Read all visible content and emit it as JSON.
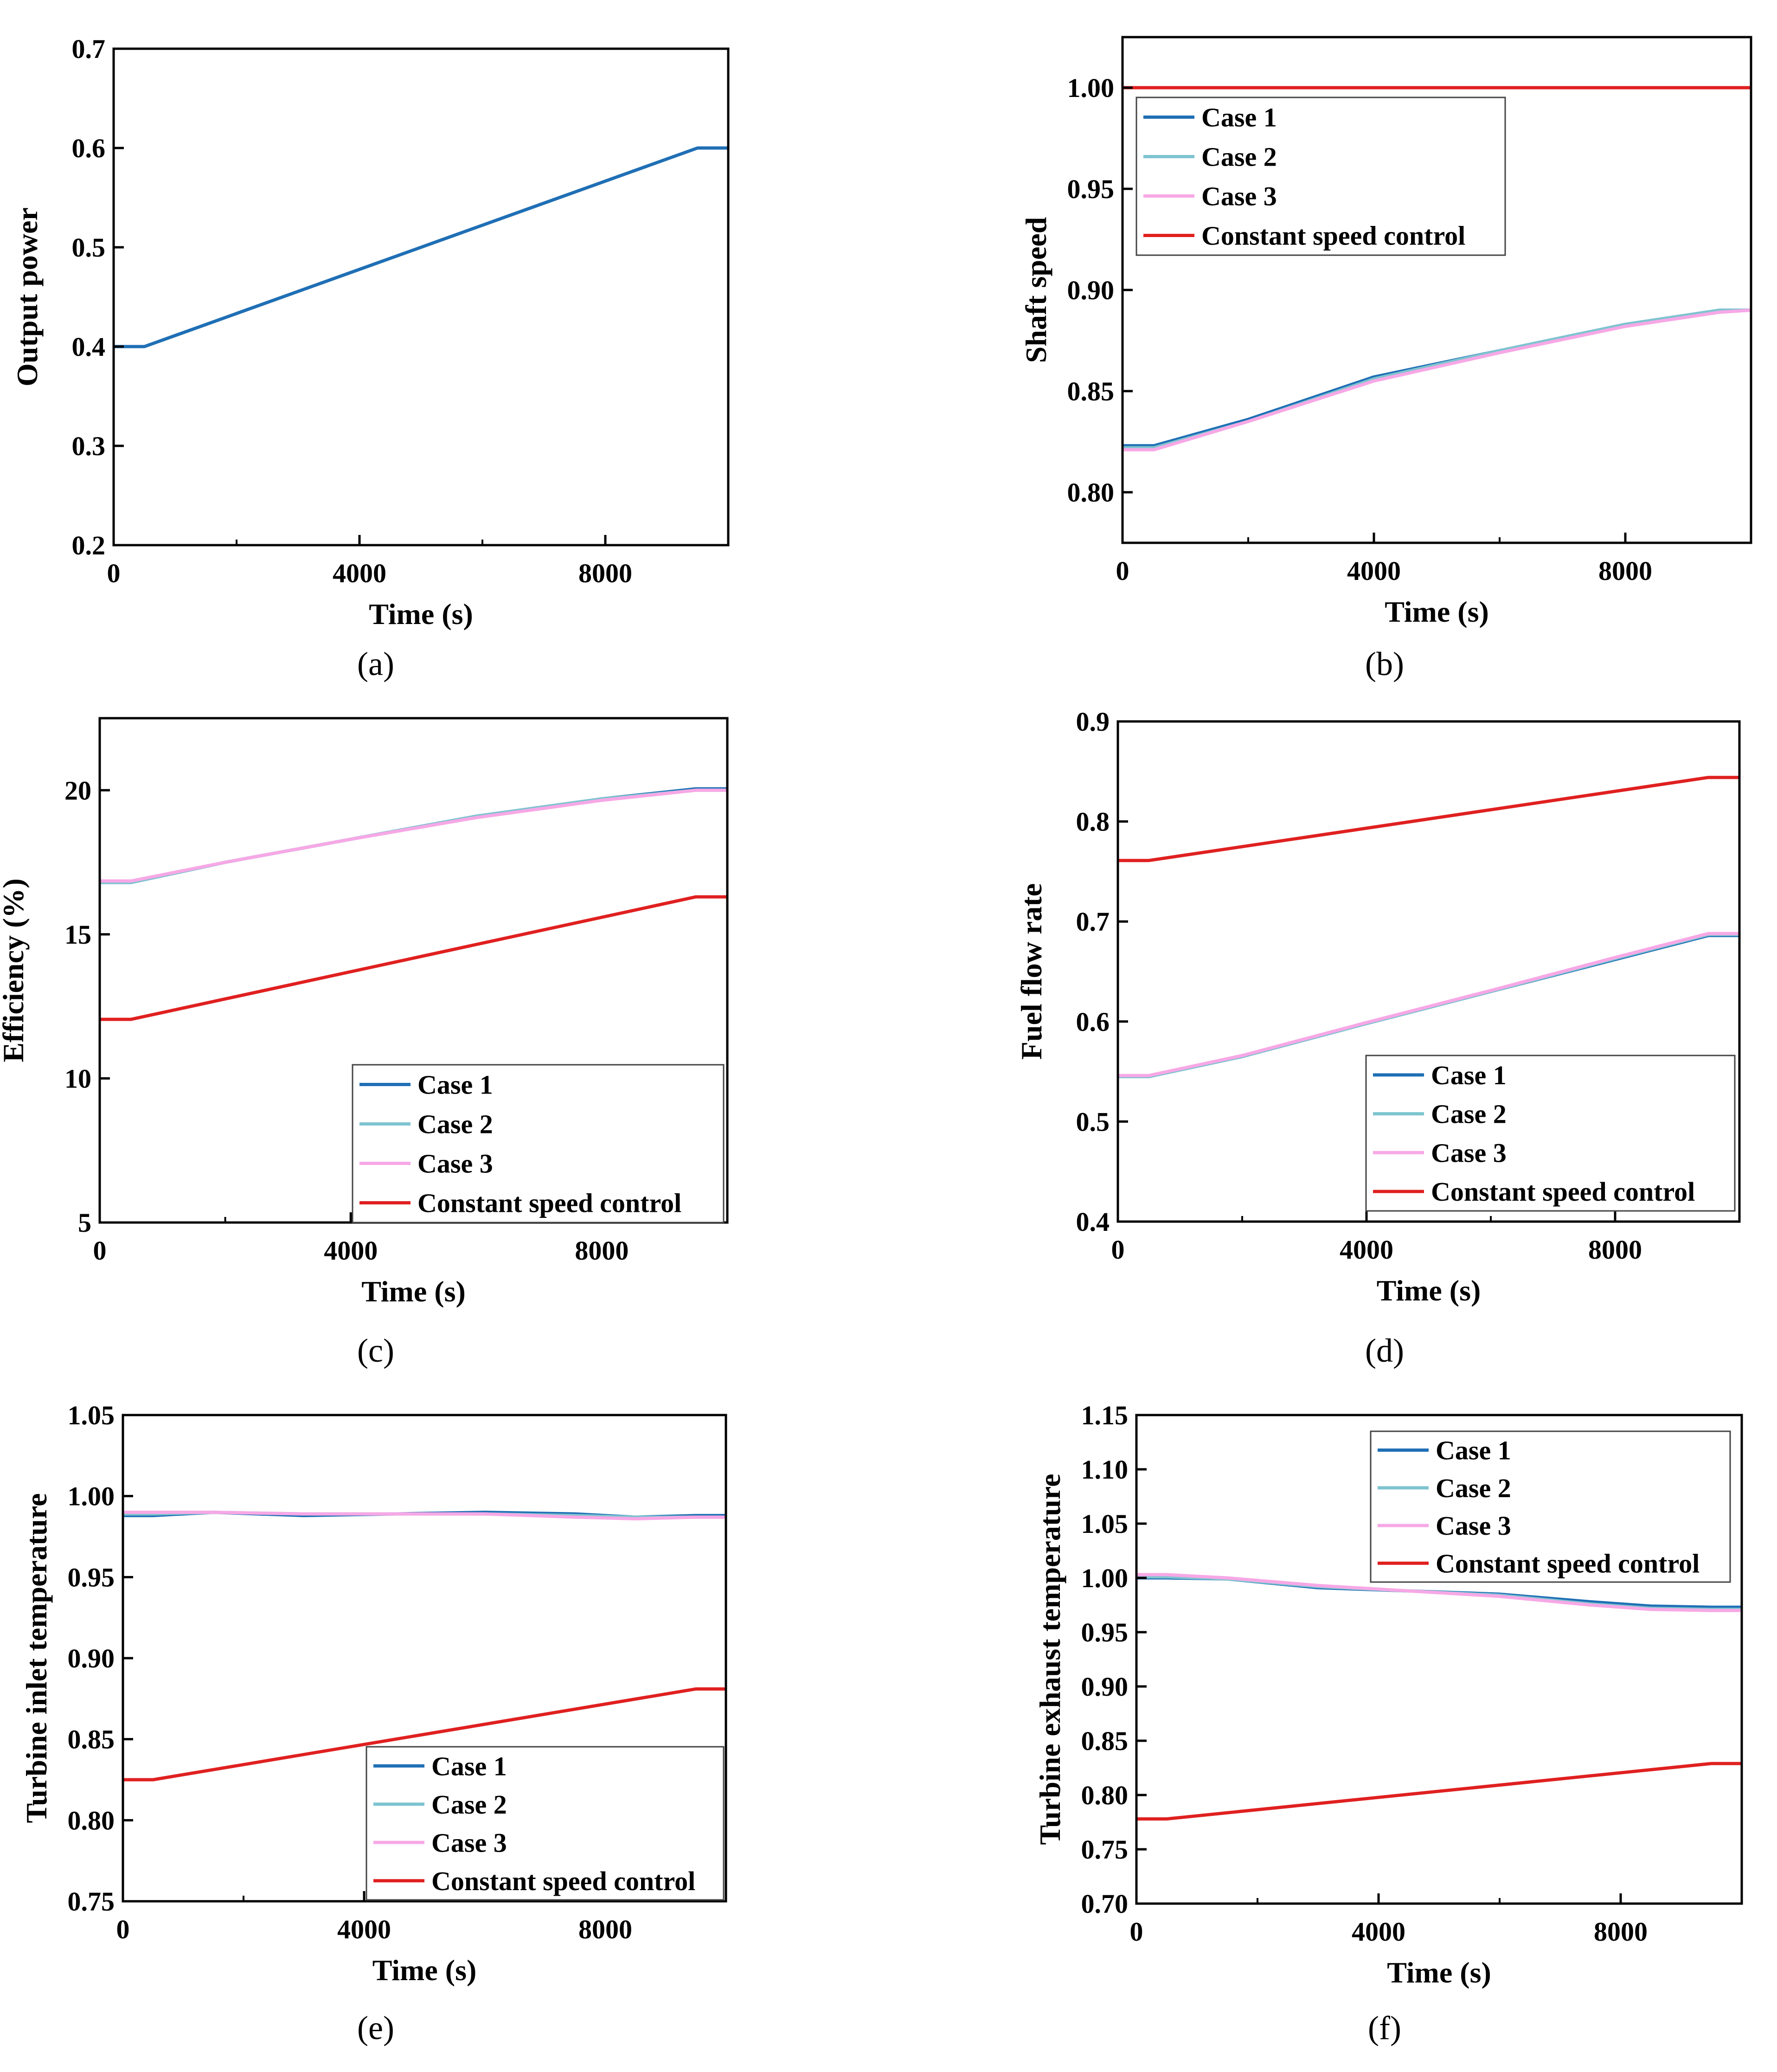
{
  "figure": {
    "series_colors": {
      "Case 1": "#1f6fb5",
      "Case 2": "#7ec4d0",
      "Case 3": "#f7a8e6",
      "Constant speed control": "#e02020",
      "Output power": "#1f6fb5"
    }
  },
  "chart_data": [
    {
      "panel": "(a)",
      "type": "line",
      "xlabel": "Time (s)",
      "ylabel": "Output power",
      "xlim": [
        0,
        10000
      ],
      "ylim": [
        0.2,
        0.7
      ],
      "xticks": [
        "0",
        "4000",
        "8000"
      ],
      "xtick_values": [
        0,
        4000,
        8000
      ],
      "yticks": [
        "0.2",
        "0.3",
        "0.4",
        "0.5",
        "0.6",
        "0.7"
      ],
      "ytick_values": [
        0.2,
        0.3,
        0.4,
        0.5,
        0.6,
        0.7
      ],
      "legend": null,
      "series": [
        {
          "name": "Output power",
          "x": [
            0,
            500,
            9500,
            10000
          ],
          "y": [
            0.4,
            0.4,
            0.6,
            0.6
          ]
        }
      ]
    },
    {
      "panel": "(b)",
      "type": "line",
      "xlabel": "Time (s)",
      "ylabel": "Shaft speed",
      "xlim": [
        0,
        10000
      ],
      "ylim": [
        0.775,
        1.025
      ],
      "xticks": [
        "0",
        "4000",
        "8000"
      ],
      "xtick_values": [
        0,
        4000,
        8000
      ],
      "yticks": [
        "0.80",
        "0.85",
        "0.90",
        "0.95",
        "1.00"
      ],
      "ytick_values": [
        0.8,
        0.85,
        0.9,
        0.95,
        1.0
      ],
      "legend": "top-left",
      "series": [
        {
          "name": "Case 1",
          "x": [
            0,
            500,
            2000,
            4000,
            6000,
            8000,
            9500,
            10000
          ],
          "y": [
            0.823,
            0.823,
            0.836,
            0.857,
            0.87,
            0.883,
            0.89,
            0.89
          ]
        },
        {
          "name": "Case 2",
          "x": [
            0,
            500,
            2000,
            4000,
            6000,
            8000,
            9500,
            10000
          ],
          "y": [
            0.822,
            0.822,
            0.835,
            0.856,
            0.87,
            0.883,
            0.89,
            0.89
          ]
        },
        {
          "name": "Case 3",
          "x": [
            0,
            500,
            2000,
            4000,
            6000,
            8000,
            9500,
            10000
          ],
          "y": [
            0.821,
            0.821,
            0.835,
            0.855,
            0.869,
            0.882,
            0.889,
            0.89
          ]
        },
        {
          "name": "Constant speed control",
          "x": [
            0,
            10000
          ],
          "y": [
            1.0,
            1.0
          ]
        }
      ]
    },
    {
      "panel": "(c)",
      "type": "line",
      "xlabel": "Time (s)",
      "ylabel": "Efficiency (%)",
      "xlim": [
        0,
        10000
      ],
      "ylim": [
        5,
        22.5
      ],
      "xticks": [
        "0",
        "4000",
        "8000"
      ],
      "xtick_values": [
        0,
        4000,
        8000
      ],
      "yticks": [
        "5",
        "10",
        "15",
        "20"
      ],
      "ytick_values": [
        5,
        10,
        15,
        20
      ],
      "legend": "bottom-right",
      "series": [
        {
          "name": "Case 1",
          "x": [
            0,
            500,
            2000,
            4000,
            6000,
            8000,
            9500,
            10000
          ],
          "y": [
            16.8,
            16.8,
            17.5,
            18.3,
            19.1,
            19.7,
            20.05,
            20.05
          ]
        },
        {
          "name": "Case 2",
          "x": [
            0,
            500,
            2000,
            4000,
            6000,
            8000,
            9500,
            10000
          ],
          "y": [
            16.8,
            16.8,
            17.5,
            18.3,
            19.1,
            19.7,
            20.0,
            20.0
          ]
        },
        {
          "name": "Case 3",
          "x": [
            0,
            500,
            2000,
            4000,
            6000,
            8000,
            9500,
            10000
          ],
          "y": [
            16.85,
            16.85,
            17.5,
            18.3,
            19.05,
            19.65,
            20.0,
            20.0
          ]
        },
        {
          "name": "Constant speed control",
          "x": [
            0,
            500,
            9500,
            10000
          ],
          "y": [
            12.05,
            12.05,
            16.3,
            16.3
          ]
        }
      ]
    },
    {
      "panel": "(d)",
      "type": "line",
      "xlabel": "Time (s)",
      "ylabel": "Fuel flow rate",
      "xlim": [
        0,
        10000
      ],
      "ylim": [
        0.4,
        0.9
      ],
      "xticks": [
        "0",
        "4000",
        "8000"
      ],
      "xtick_values": [
        0,
        4000,
        8000
      ],
      "yticks": [
        "0.4",
        "0.5",
        "0.6",
        "0.7",
        "0.8",
        "0.9"
      ],
      "ytick_values": [
        0.4,
        0.5,
        0.6,
        0.7,
        0.8,
        0.9
      ],
      "legend": "bottom-right",
      "series": [
        {
          "name": "Case 1",
          "x": [
            0,
            500,
            2000,
            4000,
            6000,
            8000,
            9500,
            10000
          ],
          "y": [
            0.545,
            0.545,
            0.565,
            0.598,
            0.63,
            0.662,
            0.686,
            0.686
          ]
        },
        {
          "name": "Case 2",
          "x": [
            0,
            500,
            2000,
            4000,
            6000,
            8000,
            9500,
            10000
          ],
          "y": [
            0.545,
            0.545,
            0.565,
            0.598,
            0.63,
            0.663,
            0.687,
            0.687
          ]
        },
        {
          "name": "Case 3",
          "x": [
            0,
            500,
            2000,
            4000,
            6000,
            8000,
            9500,
            10000
          ],
          "y": [
            0.546,
            0.546,
            0.566,
            0.599,
            0.631,
            0.664,
            0.688,
            0.688
          ]
        },
        {
          "name": "Constant speed control",
          "x": [
            0,
            500,
            9500,
            10000
          ],
          "y": [
            0.761,
            0.761,
            0.844,
            0.844
          ]
        }
      ]
    },
    {
      "panel": "(e)",
      "type": "line",
      "xlabel": "Time (s)",
      "ylabel": "Turbine inlet temperature",
      "xlim": [
        0,
        10000
      ],
      "ylim": [
        0.75,
        1.05
      ],
      "xticks": [
        "0",
        "4000",
        "8000"
      ],
      "xtick_values": [
        0,
        4000,
        8000
      ],
      "yticks": [
        "0.75",
        "0.80",
        "0.85",
        "0.90",
        "0.95",
        "1.00",
        "1.05"
      ],
      "ytick_values": [
        0.75,
        0.8,
        0.85,
        0.9,
        0.95,
        1.0,
        1.05
      ],
      "legend": "bottom-right",
      "series": [
        {
          "name": "Case 1",
          "x": [
            0,
            500,
            1500,
            3000,
            4500,
            6000,
            7500,
            8500,
            9500,
            10000
          ],
          "y": [
            0.988,
            0.988,
            0.99,
            0.988,
            0.989,
            0.99,
            0.989,
            0.987,
            0.988,
            0.988
          ]
        },
        {
          "name": "Case 2",
          "x": [
            0,
            500,
            1500,
            3000,
            4500,
            6000,
            7500,
            8500,
            9500,
            10000
          ],
          "y": [
            0.989,
            0.989,
            0.99,
            0.989,
            0.989,
            0.989,
            0.988,
            0.987,
            0.987,
            0.987
          ]
        },
        {
          "name": "Case 3",
          "x": [
            0,
            500,
            1500,
            3000,
            4500,
            6000,
            7500,
            8500,
            9500,
            10000
          ],
          "y": [
            0.99,
            0.99,
            0.99,
            0.989,
            0.989,
            0.989,
            0.987,
            0.986,
            0.987,
            0.987
          ]
        },
        {
          "name": "Constant speed control",
          "x": [
            0,
            500,
            9500,
            10000
          ],
          "y": [
            0.825,
            0.825,
            0.881,
            0.881
          ]
        }
      ]
    },
    {
      "panel": "(f)",
      "type": "line",
      "xlabel": "Time (s)",
      "ylabel": "Turbine exhaust temperature",
      "xlim": [
        0,
        10000
      ],
      "ylim": [
        0.7,
        1.15
      ],
      "xticks": [
        "0",
        "4000",
        "8000"
      ],
      "xtick_values": [
        0,
        4000,
        8000
      ],
      "yticks": [
        "0.70",
        "0.75",
        "0.80",
        "0.85",
        "0.90",
        "0.95",
        "1.00",
        "1.05",
        "1.10",
        "1.15"
      ],
      "ytick_values": [
        0.7,
        0.75,
        0.8,
        0.85,
        0.9,
        0.95,
        1.0,
        1.05,
        1.1,
        1.15
      ],
      "legend": "top-right",
      "series": [
        {
          "name": "Case 1",
          "x": [
            0,
            500,
            1500,
            3000,
            4500,
            6000,
            7500,
            8500,
            9500,
            10000
          ],
          "y": [
            1.0,
            1.0,
            0.999,
            0.991,
            0.988,
            0.985,
            0.978,
            0.974,
            0.973,
            0.973
          ]
        },
        {
          "name": "Case 2",
          "x": [
            0,
            500,
            1500,
            3000,
            4500,
            6000,
            7500,
            8500,
            9500,
            10000
          ],
          "y": [
            1.001,
            1.001,
            0.999,
            0.992,
            0.988,
            0.984,
            0.976,
            0.972,
            0.971,
            0.971
          ]
        },
        {
          "name": "Case 3",
          "x": [
            0,
            500,
            1500,
            3000,
            4500,
            6000,
            7500,
            8500,
            9500,
            10000
          ],
          "y": [
            1.003,
            1.003,
            1.0,
            0.993,
            0.988,
            0.983,
            0.975,
            0.971,
            0.97,
            0.97
          ]
        },
        {
          "name": "Constant speed control",
          "x": [
            0,
            500,
            9500,
            10000
          ],
          "y": [
            0.778,
            0.778,
            0.829,
            0.829
          ]
        }
      ]
    }
  ]
}
